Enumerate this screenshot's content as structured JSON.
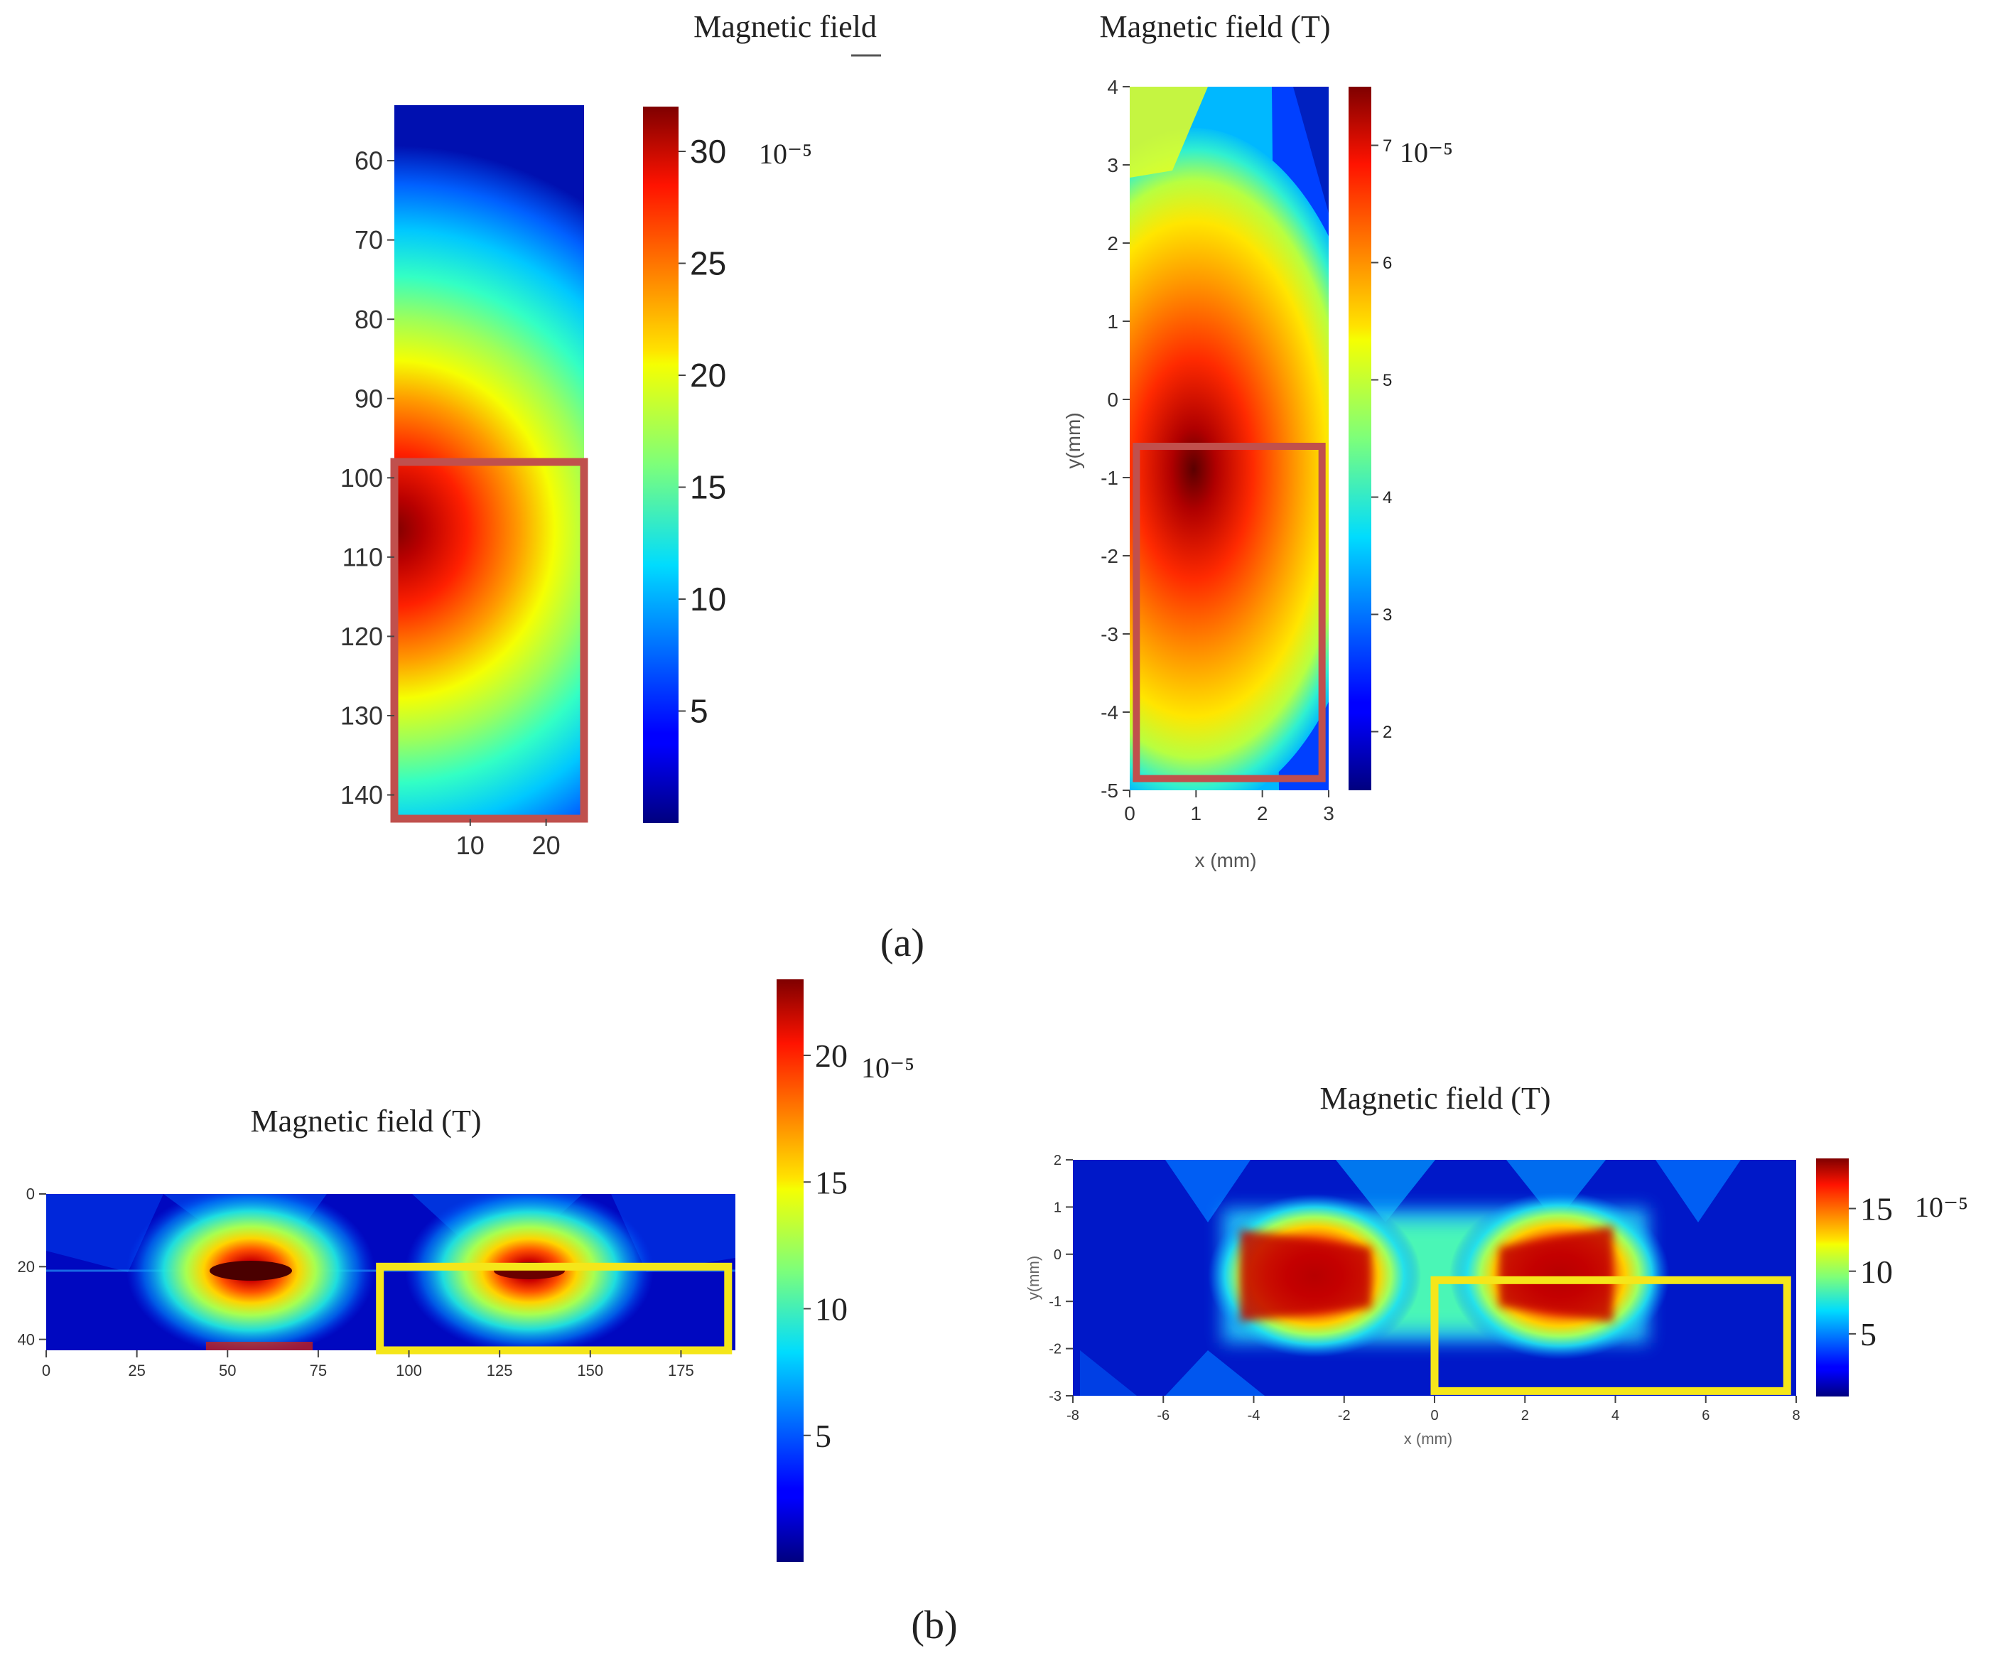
{
  "figure": {
    "label_a": "(a)",
    "label_b": "(b)"
  },
  "chart_data": [
    {
      "id": "a-left",
      "type": "heatmap",
      "title": "Magnetic field",
      "xlabel": "",
      "ylabel": "",
      "xlim": [
        0,
        25
      ],
      "ylim": [
        143,
        53
      ],
      "x_ticks": [
        10,
        20
      ],
      "y_ticks": [
        60,
        70,
        80,
        90,
        100,
        110,
        120,
        130,
        140
      ],
      "colorbar": {
        "ticks": [
          5,
          10,
          15,
          20,
          25,
          30
        ],
        "range": [
          0,
          32
        ],
        "exponent_label": "10⁻⁵"
      },
      "peak": {
        "x": 0,
        "y": 107,
        "value": 32
      },
      "highlight": {
        "color": "#c0504d",
        "x": [
          0,
          25
        ],
        "y": [
          98,
          143
        ]
      }
    },
    {
      "id": "a-right",
      "type": "heatmap",
      "title": "Magnetic field (T)",
      "xlabel": "x (mm)",
      "ylabel": "y(mm)",
      "xlim": [
        0,
        3
      ],
      "ylim": [
        -5,
        4
      ],
      "x_ticks": [
        0,
        1,
        2,
        3
      ],
      "y_ticks": [
        4,
        3,
        2,
        1,
        0,
        -1,
        -2,
        -3,
        -4,
        -5
      ],
      "colorbar": {
        "ticks": [
          2,
          3,
          4,
          5,
          6,
          7
        ],
        "range": [
          1.5,
          7.5
        ],
        "exponent_label": "10⁻⁵"
      },
      "peak": {
        "x": 1,
        "y": -0.5,
        "value": 7.5
      },
      "highlight": {
        "color": "#c0504d",
        "x": [
          0.1,
          2.9
        ],
        "y": [
          -4.85,
          -0.6
        ]
      }
    },
    {
      "id": "b-left",
      "type": "heatmap",
      "title": "Magnetic field (T)",
      "xlabel": "",
      "ylabel": "",
      "xlim": [
        0,
        190
      ],
      "ylim": [
        43,
        0
      ],
      "x_ticks": [
        0,
        25,
        50,
        75,
        100,
        125,
        150,
        175
      ],
      "y_ticks": [
        0,
        20,
        40
      ],
      "colorbar": {
        "ticks": [
          5,
          10,
          15,
          20
        ],
        "range": [
          0,
          23
        ],
        "exponent_label": "10⁻⁵"
      },
      "peaks": [
        {
          "x": 57,
          "y": 20,
          "value": 23
        },
        {
          "x": 130,
          "y": 20,
          "value": 22
        }
      ],
      "highlight": {
        "color": "#f5e61a",
        "x": [
          92,
          188
        ],
        "y": [
          20,
          43
        ]
      }
    },
    {
      "id": "b-right",
      "type": "heatmap",
      "title": "Magnetic field (T)",
      "xlabel": "x (mm)",
      "ylabel": "y(mm)",
      "xlim": [
        -8,
        8
      ],
      "ylim": [
        -3,
        2
      ],
      "x_ticks": [
        -8,
        -6,
        -4,
        -2,
        0,
        2,
        4,
        6,
        8
      ],
      "y_ticks": [
        2,
        1,
        0,
        -1,
        -2,
        -3
      ],
      "colorbar": {
        "ticks": [
          5,
          10,
          15
        ],
        "range": [
          0,
          19
        ],
        "exponent_label": "10⁻⁵"
      },
      "peaks": [
        {
          "x": -3,
          "y": -0.5,
          "value": 19
        },
        {
          "x": 4,
          "y": -0.5,
          "value": 19
        }
      ],
      "highlight": {
        "color": "#f5e61a",
        "x": [
          0,
          7.8
        ],
        "y": [
          -2.9,
          -0.55
        ]
      }
    }
  ]
}
